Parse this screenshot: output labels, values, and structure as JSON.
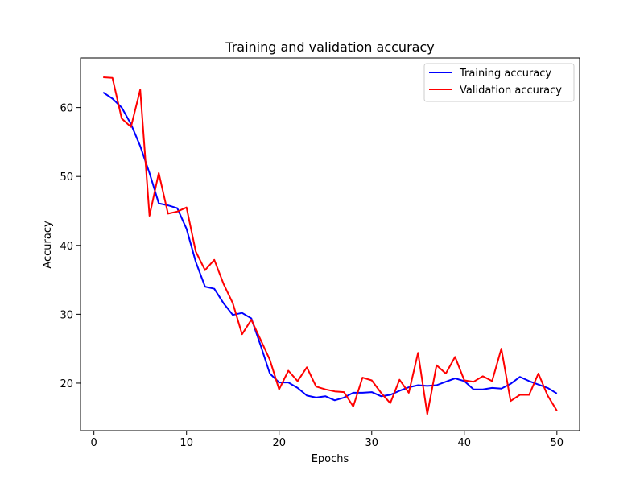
{
  "chart_data": {
    "type": "line",
    "title": "Training and validation accuracy",
    "xlabel": "Epochs",
    "ylabel": "Accuracy",
    "xlim": [
      -1.45,
      52.45
    ],
    "ylim": [
      13.1,
      67.2
    ],
    "xticks": [
      0,
      10,
      20,
      30,
      40,
      50
    ],
    "yticks": [
      20,
      30,
      40,
      50,
      60
    ],
    "grid": false,
    "legend_position": "top-right",
    "x": [
      1,
      2,
      3,
      4,
      5,
      6,
      7,
      8,
      9,
      10,
      11,
      12,
      13,
      14,
      15,
      16,
      17,
      18,
      19,
      20,
      21,
      22,
      23,
      24,
      25,
      26,
      27,
      28,
      29,
      30,
      31,
      32,
      33,
      34,
      35,
      36,
      37,
      38,
      39,
      40,
      41,
      42,
      43,
      44,
      45,
      46,
      47,
      48,
      49,
      50
    ],
    "series": [
      {
        "name": "Training accuracy",
        "color": "#0000ff",
        "values": [
          62.2,
          61.3,
          60.0,
          57.6,
          54.4,
          50.5,
          46.1,
          45.8,
          45.4,
          42.4,
          37.6,
          34.0,
          33.7,
          31.6,
          29.9,
          30.2,
          29.4,
          25.5,
          21.4,
          20.1,
          20.1,
          19.3,
          18.2,
          17.9,
          18.1,
          17.5,
          17.9,
          18.6,
          18.6,
          18.7,
          18.1,
          18.3,
          18.9,
          19.4,
          19.7,
          19.6,
          19.7,
          20.2,
          20.7,
          20.3,
          19.1,
          19.1,
          19.3,
          19.2,
          19.9,
          20.9,
          20.3,
          19.8,
          19.3,
          18.5
        ]
      },
      {
        "name": "Validation accuracy",
        "color": "#ff0000",
        "values": [
          64.4,
          64.3,
          58.4,
          57.2,
          62.6,
          44.3,
          50.5,
          44.6,
          44.9,
          45.5,
          39.1,
          36.4,
          37.9,
          34.4,
          31.6,
          27.1,
          29.2,
          26.3,
          23.4,
          19.1,
          21.8,
          20.3,
          22.3,
          19.5,
          19.1,
          18.8,
          18.7,
          16.6,
          20.8,
          20.4,
          18.6,
          17.1,
          20.5,
          18.6,
          24.4,
          15.5,
          22.6,
          21.4,
          23.8,
          20.4,
          20.2,
          21.0,
          20.3,
          25.0,
          17.4,
          18.3,
          18.3,
          21.4,
          18.2,
          16.0
        ]
      }
    ]
  }
}
